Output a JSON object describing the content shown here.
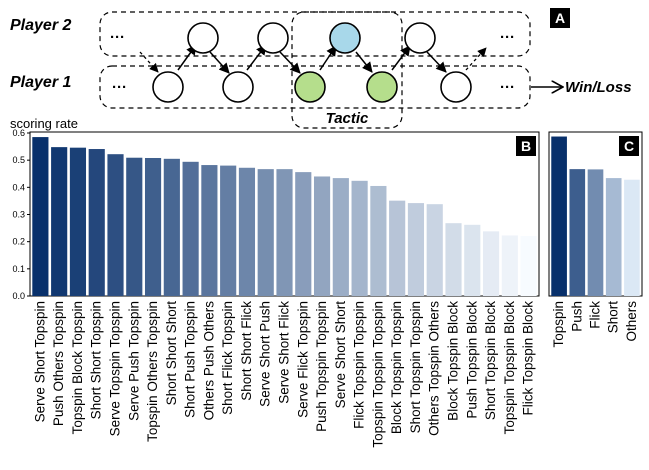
{
  "diagram": {
    "player2_label": "Player 2",
    "player1_label": "Player 1",
    "ellipsis": "···",
    "tactic_label": "Tactic",
    "outcome_label": "Win/Loss",
    "panel_letter": "A",
    "colors": {
      "tactic_p1": "#b5de8c",
      "tactic_p2": "#a8d8ea",
      "stroke": "#000000"
    }
  },
  "chart_data": [
    {
      "type": "bar",
      "panel_letter": "B",
      "ylabel": "scoring rate",
      "ylim": [
        0,
        0.6
      ],
      "yticks": [
        "0.0",
        "0.1",
        "0.2",
        "0.3",
        "0.4",
        "0.5",
        "0.6"
      ],
      "grid": false,
      "categories": [
        "Serve Short Topspin",
        "Push Others Topspin",
        "Topspin Block Topspin",
        "Short Short Topspin",
        "Serve Topspin Topspin",
        "Serve Push Topspin",
        "Topspin Others Topspin",
        "Short Short Short",
        "Short Push Topspin",
        "Others Push Others",
        "Short Flick Topspin",
        "Short Short Flick",
        "Serve Short Push",
        "Serve Short Flick",
        "Serve Flick Topspin",
        "Push Topspin Topspin",
        "Serve Short Short",
        "Flick Topspin Topspin",
        "Topspin Topspin Topspin",
        "Block Topspin Topspin",
        "Short Topspin Topspin",
        "Others Topspin Others",
        "Block Topspin Block",
        "Push Topspin Block",
        "Short Topspin Block",
        "Topspin Topspin Block",
        "Flick Topspin Block"
      ],
      "values": [
        0.585,
        0.548,
        0.546,
        0.541,
        0.522,
        0.509,
        0.508,
        0.505,
        0.494,
        0.482,
        0.48,
        0.472,
        0.467,
        0.467,
        0.456,
        0.44,
        0.434,
        0.424,
        0.405,
        0.351,
        0.342,
        0.338,
        0.268,
        0.262,
        0.238,
        0.223,
        0.221
      ],
      "color_scale": [
        "#08306b",
        "#f7fbff"
      ]
    },
    {
      "type": "bar",
      "panel_letter": "C",
      "ylim": [
        0,
        0.6
      ],
      "categories": [
        "Topspin",
        "Push",
        "Flick",
        "Short",
        "Others"
      ],
      "values": [
        0.587,
        0.467,
        0.466,
        0.434,
        0.428
      ],
      "color_scale": [
        "#08306b",
        "#dbe8f5"
      ]
    }
  ]
}
